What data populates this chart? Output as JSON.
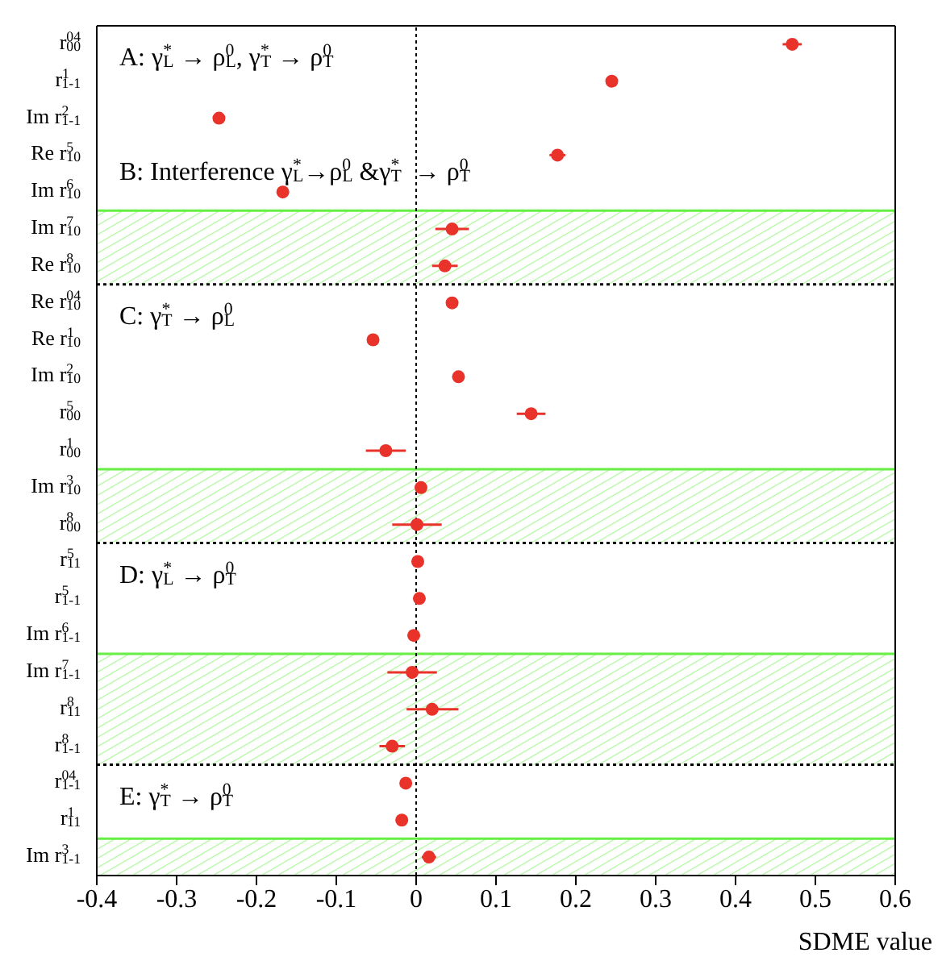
{
  "chart_data": {
    "type": "scatter",
    "orientation": "horizontal",
    "xlabel": "SDME value",
    "categories": [
      "r$^{04}$$_{00}$",
      "r$^{1}$$_{1-1}$",
      "Im r$^{2}$$_{1-1}$",
      "Re r$^{5}$$_{10}$",
      "Im r$^{6}$$_{10}$",
      "Im r$^{7}$$_{10}$",
      "Re r$^{8}$$_{10}$",
      "Re r$^{04}$$_{10}$",
      "Re r$^{1}$$_{10}$",
      "Im r$^{2}$$_{10}$",
      "r$^{5}$$_{00}$",
      "r$^{1}$$_{00}$",
      "Im r$^{3}$$_{10}$",
      "r$^{8}$$_{00}$",
      "r$^{5}$$_{11}$",
      "r$^{5}$$_{1-1}$",
      "Im r$^{6}$$_{1-1}$",
      "Im r$^{7}$$_{1-1}$",
      "r$^{8}$$_{11}$",
      "r$^{8}$$_{1-1}$",
      "r$^{04}$$_{1-1}$",
      "r$^{1}$$_{11}$",
      "Im r$^{3}$$_{1-1}$"
    ],
    "series": [
      {
        "color": "#e8322a",
        "values": [
          0.471,
          0.245,
          -0.247,
          0.177,
          -0.167,
          0.045,
          0.036,
          0.045,
          -0.054,
          0.053,
          0.144,
          -0.038,
          0.006,
          0.001,
          0.002,
          0.004,
          -0.003,
          -0.005,
          0.02,
          -0.03,
          -0.013,
          -0.018,
          0.016
        ],
        "errors": [
          0.012,
          null,
          null,
          0.01,
          null,
          0.021,
          0.016,
          null,
          null,
          null,
          0.018,
          0.025,
          null,
          0.031,
          null,
          null,
          null,
          0.031,
          [
            -0.012,
            0.053
          ],
          0.016,
          null,
          null,
          0.009
        ]
      }
    ],
    "marker": "circle",
    "xlim": [
      -0.4,
      0.6
    ],
    "xticks": [
      -0.4,
      -0.3,
      -0.2,
      -0.1,
      0,
      0.1,
      0.2,
      0.3,
      0.4,
      0.5,
      0.6
    ],
    "grid": false,
    "legend": false,
    "annotations": [
      "A: γ$^{*}$$_{L}$ → ρ$^{0}$$_{L}$, γ$^{*}$$_{T}$ → ρ$^{0}$$_{T}$",
      "B: Interference γ$^{*}$$_{L}$→ρ$^{0}$$_{L}$ &γ$^{*}$$_{T}$  → ρ$^{0}$$_{T}$",
      "C: γ$^{*}$$_{T}$ → ρ$^{0}$$_{L}$",
      "D: γ$^{*}$$_{L}$ → ρ$^{0}$$_{T}$",
      "E: γ$^{*}$$_{T}$ → ρ$^{0}$$_{T}$"
    ],
    "bands": [
      {
        "axis": "y",
        "from": "Im r$^{7}$$_{10}$",
        "to": "Re r$^{8}$$_{10}$",
        "color": "#66ee44"
      },
      {
        "axis": "y",
        "from": "Im r$^{3}$$_{10}$",
        "to": "r$^{8}$$_{00}$",
        "color": "#66ee44"
      },
      {
        "axis": "y",
        "from": "Im r$^{7}$$_{1-1}$",
        "to": "r$^{8}$$_{1-1}$",
        "color": "#66ee44"
      },
      {
        "axis": "y",
        "from": "Im r$^{3}$$_{1-1}$",
        "to": "Im r$^{3}$$_{1-1}$",
        "color": "#66ee44"
      }
    ],
    "ref_lines": [
      {
        "axis": "x",
        "value": 0,
        "line_style": "dotted",
        "color": "#000000"
      }
    ]
  }
}
